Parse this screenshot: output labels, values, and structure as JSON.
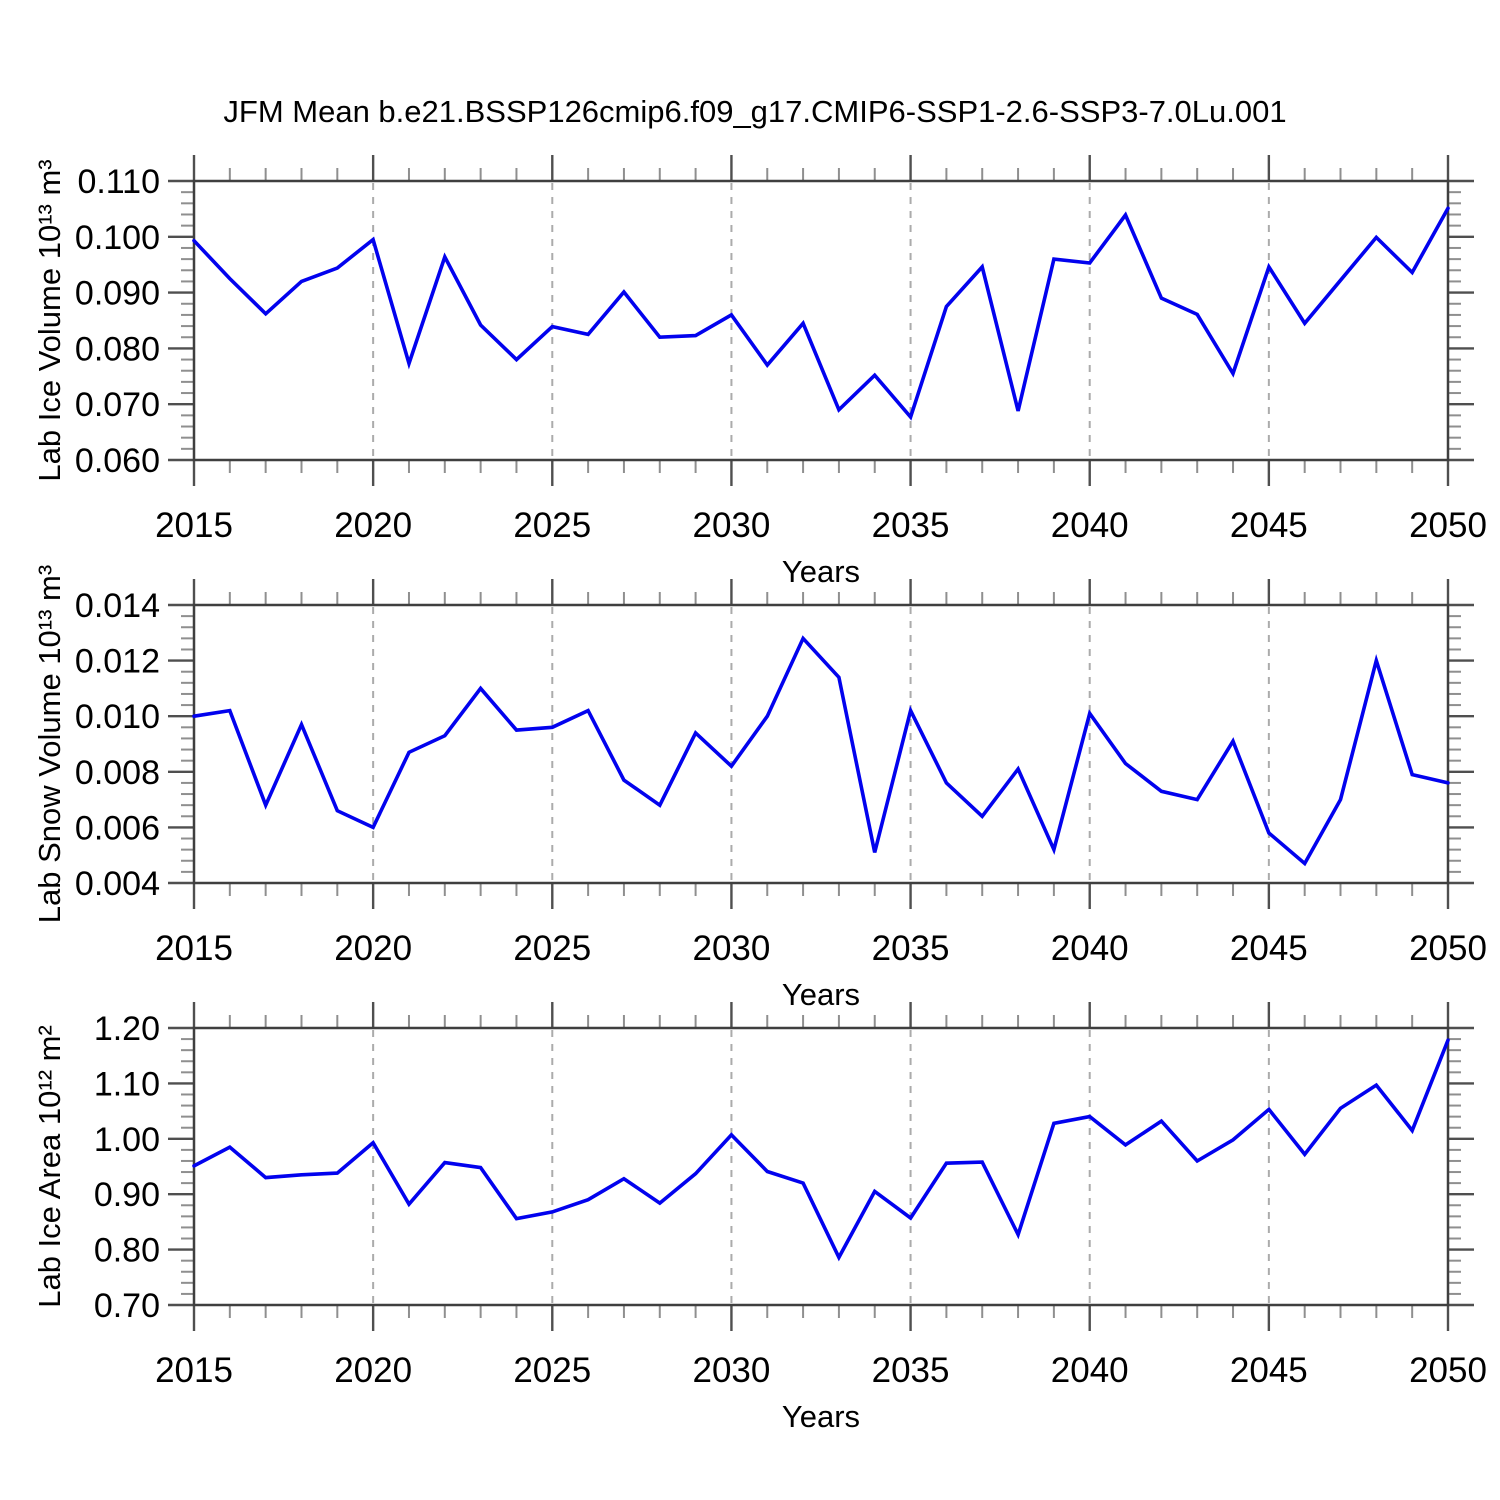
{
  "title": "JFM Mean b.e21.BSSP126cmip6.f09_g17.CMIP6-SSP1-2.6-SSP3-7.0Lu.001",
  "colors": {
    "line": "#0202ee",
    "frame": "#3f3f3f",
    "tick_major": "#4f4f4f",
    "tick_minor": "#8f8f8f",
    "grid": "#ababab",
    "text": "#000000",
    "background": "#ffffff"
  },
  "years": [
    2015,
    2016,
    2017,
    2018,
    2019,
    2020,
    2021,
    2022,
    2023,
    2024,
    2025,
    2026,
    2027,
    2028,
    2029,
    2030,
    2031,
    2032,
    2033,
    2034,
    2035,
    2036,
    2037,
    2038,
    2039,
    2040,
    2041,
    2042,
    2043,
    2044,
    2045,
    2046,
    2047,
    2048,
    2049,
    2050
  ],
  "chart_data": [
    {
      "type": "line",
      "title": "JFM Mean b.e21.BSSP126cmip6.f09_g17.CMIP6-SSP1-2.6-SSP3-7.0Lu.001",
      "xlabel": "Years",
      "ylabel": "Lab Ice Volume 10¹³ m³",
      "x": [
        2015,
        2016,
        2017,
        2018,
        2019,
        2020,
        2021,
        2022,
        2023,
        2024,
        2025,
        2026,
        2027,
        2028,
        2029,
        2030,
        2031,
        2032,
        2033,
        2034,
        2035,
        2036,
        2037,
        2038,
        2039,
        2040,
        2041,
        2042,
        2043,
        2044,
        2045,
        2046,
        2047,
        2048,
        2049,
        2050
      ],
      "values": [
        0.0993,
        0.0925,
        0.0862,
        0.092,
        0.0944,
        0.0995,
        0.0773,
        0.0964,
        0.0842,
        0.078,
        0.0839,
        0.0825,
        0.0901,
        0.082,
        0.0823,
        0.086,
        0.077,
        0.0845,
        0.069,
        0.0752,
        0.0677,
        0.0875,
        0.0946,
        0.0688,
        0.096,
        0.0953,
        0.1039,
        0.089,
        0.0861,
        0.0755,
        0.0946,
        0.0845,
        0.0922,
        0.0999,
        0.0936,
        0.1051
      ],
      "ylim": [
        0.06,
        0.11
      ],
      "yticks": [
        0.06,
        0.07,
        0.08,
        0.09,
        0.1,
        0.11
      ],
      "ytick_decimals": 3,
      "y_minor_step": 0.002,
      "xticks": [
        2015,
        2020,
        2025,
        2030,
        2035,
        2040,
        2045,
        2050
      ],
      "x_minor_step": 1,
      "grid_x": [
        2020,
        2025,
        2030,
        2035,
        2040,
        2045
      ],
      "grid_style": "vertical-dashed",
      "legend": "none"
    },
    {
      "type": "line",
      "xlabel": "Years",
      "ylabel": "Lab Snow Volume 10¹³ m³",
      "x": [
        2015,
        2016,
        2017,
        2018,
        2019,
        2020,
        2021,
        2022,
        2023,
        2024,
        2025,
        2026,
        2027,
        2028,
        2029,
        2030,
        2031,
        2032,
        2033,
        2034,
        2035,
        2036,
        2037,
        2038,
        2039,
        2040,
        2041,
        2042,
        2043,
        2044,
        2045,
        2046,
        2047,
        2048,
        2049,
        2050
      ],
      "values": [
        0.01,
        0.0102,
        0.0068,
        0.0097,
        0.0066,
        0.006,
        0.0087,
        0.0093,
        0.011,
        0.0095,
        0.0096,
        0.0102,
        0.0077,
        0.0068,
        0.0094,
        0.0082,
        0.01,
        0.0128,
        0.0114,
        0.0051,
        0.0102,
        0.0076,
        0.0064,
        0.0081,
        0.0052,
        0.0101,
        0.0083,
        0.0073,
        0.007,
        0.0091,
        0.0058,
        0.0047,
        0.007,
        0.012,
        0.0079,
        0.0076
      ],
      "ylim": [
        0.004,
        0.014
      ],
      "yticks": [
        0.004,
        0.006,
        0.008,
        0.01,
        0.012,
        0.014
      ],
      "ytick_decimals": 3,
      "y_minor_step": 0.0004,
      "xticks": [
        2015,
        2020,
        2025,
        2030,
        2035,
        2040,
        2045,
        2050
      ],
      "x_minor_step": 1,
      "grid_x": [
        2020,
        2025,
        2030,
        2035,
        2040,
        2045
      ],
      "grid_style": "vertical-dashed",
      "legend": "none"
    },
    {
      "type": "line",
      "xlabel": "Years",
      "ylabel": "Lab Ice Area 10¹² m²",
      "x": [
        2015,
        2016,
        2017,
        2018,
        2019,
        2020,
        2021,
        2022,
        2023,
        2024,
        2025,
        2026,
        2027,
        2028,
        2029,
        2030,
        2031,
        2032,
        2033,
        2034,
        2035,
        2036,
        2037,
        2038,
        2039,
        2040,
        2041,
        2042,
        2043,
        2044,
        2045,
        2046,
        2047,
        2048,
        2049,
        2050
      ],
      "values": [
        0.951,
        0.985,
        0.93,
        0.935,
        0.938,
        0.993,
        0.882,
        0.957,
        0.948,
        0.856,
        0.868,
        0.89,
        0.928,
        0.884,
        0.937,
        1.007,
        0.941,
        0.92,
        0.786,
        0.905,
        0.857,
        0.956,
        0.958,
        0.827,
        1.028,
        1.04,
        0.989,
        1.032,
        0.96,
        0.998,
        1.053,
        0.972,
        1.055,
        1.097,
        1.015,
        1.178
      ],
      "ylim": [
        0.7,
        1.2
      ],
      "yticks": [
        0.7,
        0.8,
        0.9,
        1.0,
        1.1,
        1.2
      ],
      "ytick_decimals": 2,
      "y_minor_step": 0.02,
      "xticks": [
        2015,
        2020,
        2025,
        2030,
        2035,
        2040,
        2045,
        2050
      ],
      "x_minor_step": 1,
      "grid_x": [
        2020,
        2025,
        2030,
        2035,
        2040,
        2045
      ],
      "grid_style": "vertical-dashed",
      "legend": "none"
    }
  ]
}
